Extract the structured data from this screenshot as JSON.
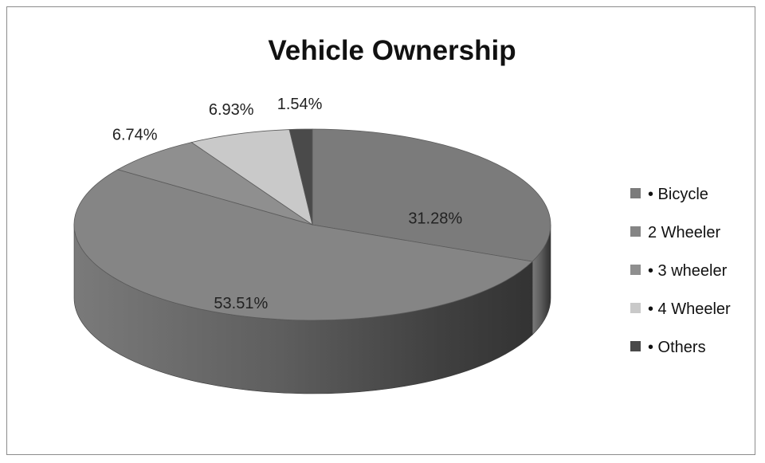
{
  "chart_data": {
    "type": "pie",
    "title": "Vehicle Ownership",
    "legend_position": "right",
    "start_angle_deg": 0,
    "slices": [
      {
        "label": "• Bicycle",
        "value": 31.28,
        "value_label": "31.28%",
        "color": "#7b7b7b"
      },
      {
        "label": "2 Wheeler",
        "value": 53.51,
        "value_label": "53.51%",
        "color": "#858585"
      },
      {
        "label": "• 3 wheeler",
        "value": 6.74,
        "value_label": "6.74%",
        "color": "#8f8f8f"
      },
      {
        "label": "• 4 Wheeler",
        "value": 6.93,
        "value_label": "6.93%",
        "color": "#c9c9c9"
      },
      {
        "label": "• Others",
        "value": 1.54,
        "value_label": "1.54%",
        "color": "#4a4a4a"
      }
    ]
  }
}
